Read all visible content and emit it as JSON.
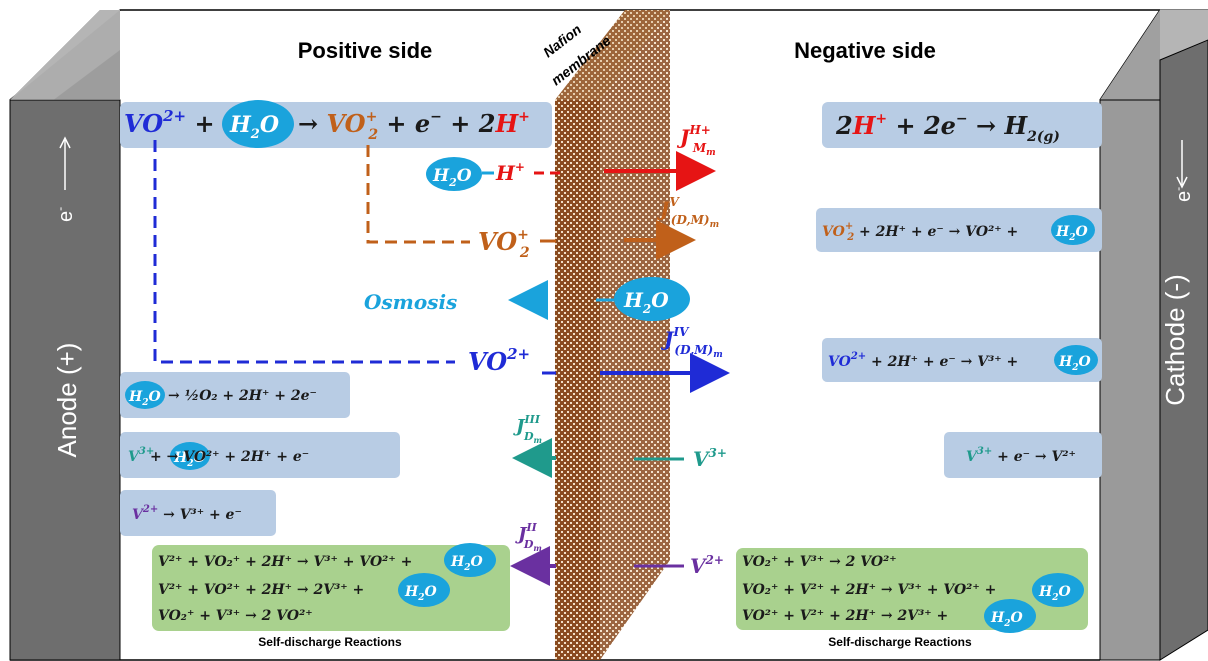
{
  "headers": {
    "positive": "Positive side",
    "negative": "Negative side"
  },
  "membrane": {
    "line1": "Nafion",
    "line2": "membrane"
  },
  "electrodes": {
    "anode": "Anode (+)",
    "cathode": "Cathode (-)",
    "electron": "e"
  },
  "species": {
    "h2o": "H",
    "h2o_sub": "2",
    "h2o_o": "O",
    "hplus": "H",
    "plus": "+",
    "vo2": "VO",
    "vo2_charge": "+",
    "vo2_sub": "2",
    "vo2plus": "VO",
    "vo2plus_charge": "2+",
    "v3": "V",
    "v3_charge": "3+",
    "v2": "V",
    "v2_charge": "2+",
    "osmosis": "Osmosis"
  },
  "fluxes": {
    "j_h": {
      "main": "J",
      "sub": "M",
      "subsub": "m",
      "sup": "H+"
    },
    "j_v": {
      "main": "J",
      "sub": "(D,M)",
      "subsub": "m",
      "sup": "V"
    },
    "j_iv": {
      "main": "J",
      "sub": "(D,M)",
      "subsub": "m",
      "sup": "IV"
    },
    "j_iii": {
      "main": "J",
      "sub": "D",
      "subsub": "m",
      "sup": "III"
    },
    "j_ii": {
      "main": "J",
      "sub": "D",
      "subsub": "m",
      "sup": "II"
    }
  },
  "reactions": {
    "pos_main": "→ + e⁻ + 2",
    "neg_main": "2H⁺ + 2e⁻ → H",
    "neg_main_sub": "2(g)",
    "pos_o2": "→ ½O₂ + 2H⁺ + 2e⁻",
    "pos_v3": "+ → VO²⁺ + 2H⁺ + e⁻",
    "pos_v2": "→ V³⁺ + e⁻",
    "neg_vo2": "+ 2H⁺ + e⁻ → VO²⁺ +",
    "neg_vo2plus": "+ 2H⁺ + e⁻ → V³⁺ +",
    "neg_v3": "+ e⁻ → V²⁺"
  },
  "self_discharge": {
    "left_lines": [
      "V²⁺ + VO₂⁺ + 2H⁺ → V³⁺ + VO²⁺ +",
      "V²⁺ + VO²⁺ + 2H⁺ → 2V³⁺ +",
      "VO₂⁺ + V³⁺ → 2 VO²⁺"
    ],
    "right_lines": [
      "VO₂⁺ + V³⁺ → 2 VO²⁺",
      "VO₂⁺ + V²⁺ + 2H⁺ → V³⁺ + VO²⁺ +",
      "VO²⁺ + V²⁺ + 2H⁺ → 2V³⁺ +"
    ],
    "caption": "Self-discharge Reactions"
  },
  "colors": {
    "vo2plus": "#1f2bd6",
    "vo2": "#c0601a",
    "h": "#e61414",
    "v3": "#1f9a8c",
    "v2": "#6a30a0",
    "h2o": "#1aa3dc",
    "box_blue": "#b8cce4",
    "box_green": "#a9d18e",
    "electrode": "#6e6e6e",
    "membrane": "#8a4b1f"
  }
}
